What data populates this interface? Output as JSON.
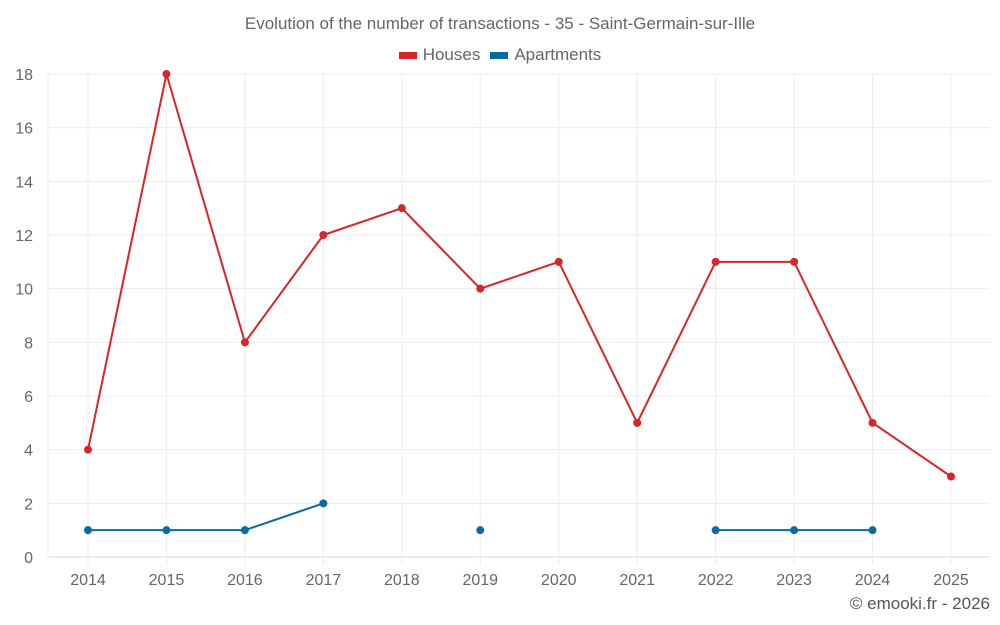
{
  "chart_data": {
    "type": "line",
    "title": "Evolution of the number of transactions - 35 - Saint-Germain-sur-Ille",
    "xlabel": "",
    "ylabel": "",
    "categories": [
      "2014",
      "2015",
      "2016",
      "2017",
      "2018",
      "2019",
      "2020",
      "2021",
      "2022",
      "2023",
      "2024",
      "2025"
    ],
    "ylim": [
      0,
      18
    ],
    "yticks": [
      0,
      2,
      4,
      6,
      8,
      10,
      12,
      14,
      16,
      18
    ],
    "grid": true,
    "legend_position": "top-center",
    "series": [
      {
        "name": "Houses",
        "color": "#d62728",
        "values": [
          4,
          18,
          8,
          12,
          13,
          10,
          11,
          5,
          11,
          11,
          5,
          3
        ]
      },
      {
        "name": "Apartments",
        "color": "#0a6aa1",
        "values": [
          1,
          1,
          1,
          2,
          null,
          1,
          null,
          null,
          1,
          1,
          1,
          null
        ]
      }
    ]
  },
  "credit": "© emooki.fr - 2026"
}
